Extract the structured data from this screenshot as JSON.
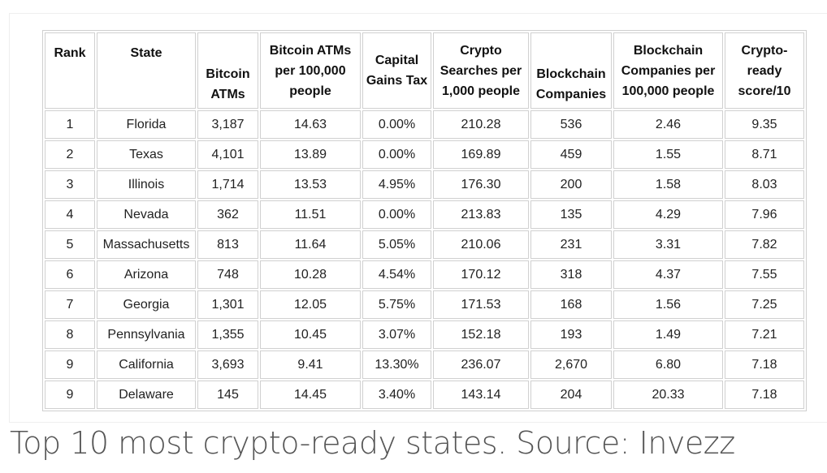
{
  "table": {
    "headers": [
      "Rank",
      "State",
      "Bitcoin ATMs",
      "Bitcoin ATMs per 100,000 people",
      "Capital Gains Tax",
      "Crypto Searches per 1,000 people",
      "Blockchain Companies",
      "Blockchain Companies per 100,000 people",
      "Crypto-ready score/10"
    ],
    "rows": [
      [
        "1",
        "Florida",
        "3,187",
        "14.63",
        "0.00%",
        "210.28",
        "536",
        "2.46",
        "9.35"
      ],
      [
        "2",
        "Texas",
        "4,101",
        "13.89",
        "0.00%",
        "169.89",
        "459",
        "1.55",
        "8.71"
      ],
      [
        "3",
        "Illinois",
        "1,714",
        "13.53",
        "4.95%",
        "176.30",
        "200",
        "1.58",
        "8.03"
      ],
      [
        "4",
        "Nevada",
        "362",
        "11.51",
        "0.00%",
        "213.83",
        "135",
        "4.29",
        "7.96"
      ],
      [
        "5",
        "Massachusetts",
        "813",
        "11.64",
        "5.05%",
        "210.06",
        "231",
        "3.31",
        "7.82"
      ],
      [
        "6",
        "Arizona",
        "748",
        "10.28",
        "4.54%",
        "170.12",
        "318",
        "4.37",
        "7.55"
      ],
      [
        "7",
        "Georgia",
        "1,301",
        "12.05",
        "5.75%",
        "171.53",
        "168",
        "1.56",
        "7.25"
      ],
      [
        "8",
        "Pennsylvania",
        "1,355",
        "10.45",
        "3.07%",
        "152.18",
        "193",
        "1.49",
        "7.21"
      ],
      [
        "9",
        "California",
        "3,693",
        "9.41",
        "13.30%",
        "236.07",
        "2,670",
        "6.80",
        "7.18"
      ],
      [
        "9",
        "Delaware",
        "145",
        "14.45",
        "3.40%",
        "143.14",
        "204",
        "20.33",
        "7.18"
      ]
    ]
  },
  "caption": "Top 10 most crypto-ready states. Source: Invezz"
}
